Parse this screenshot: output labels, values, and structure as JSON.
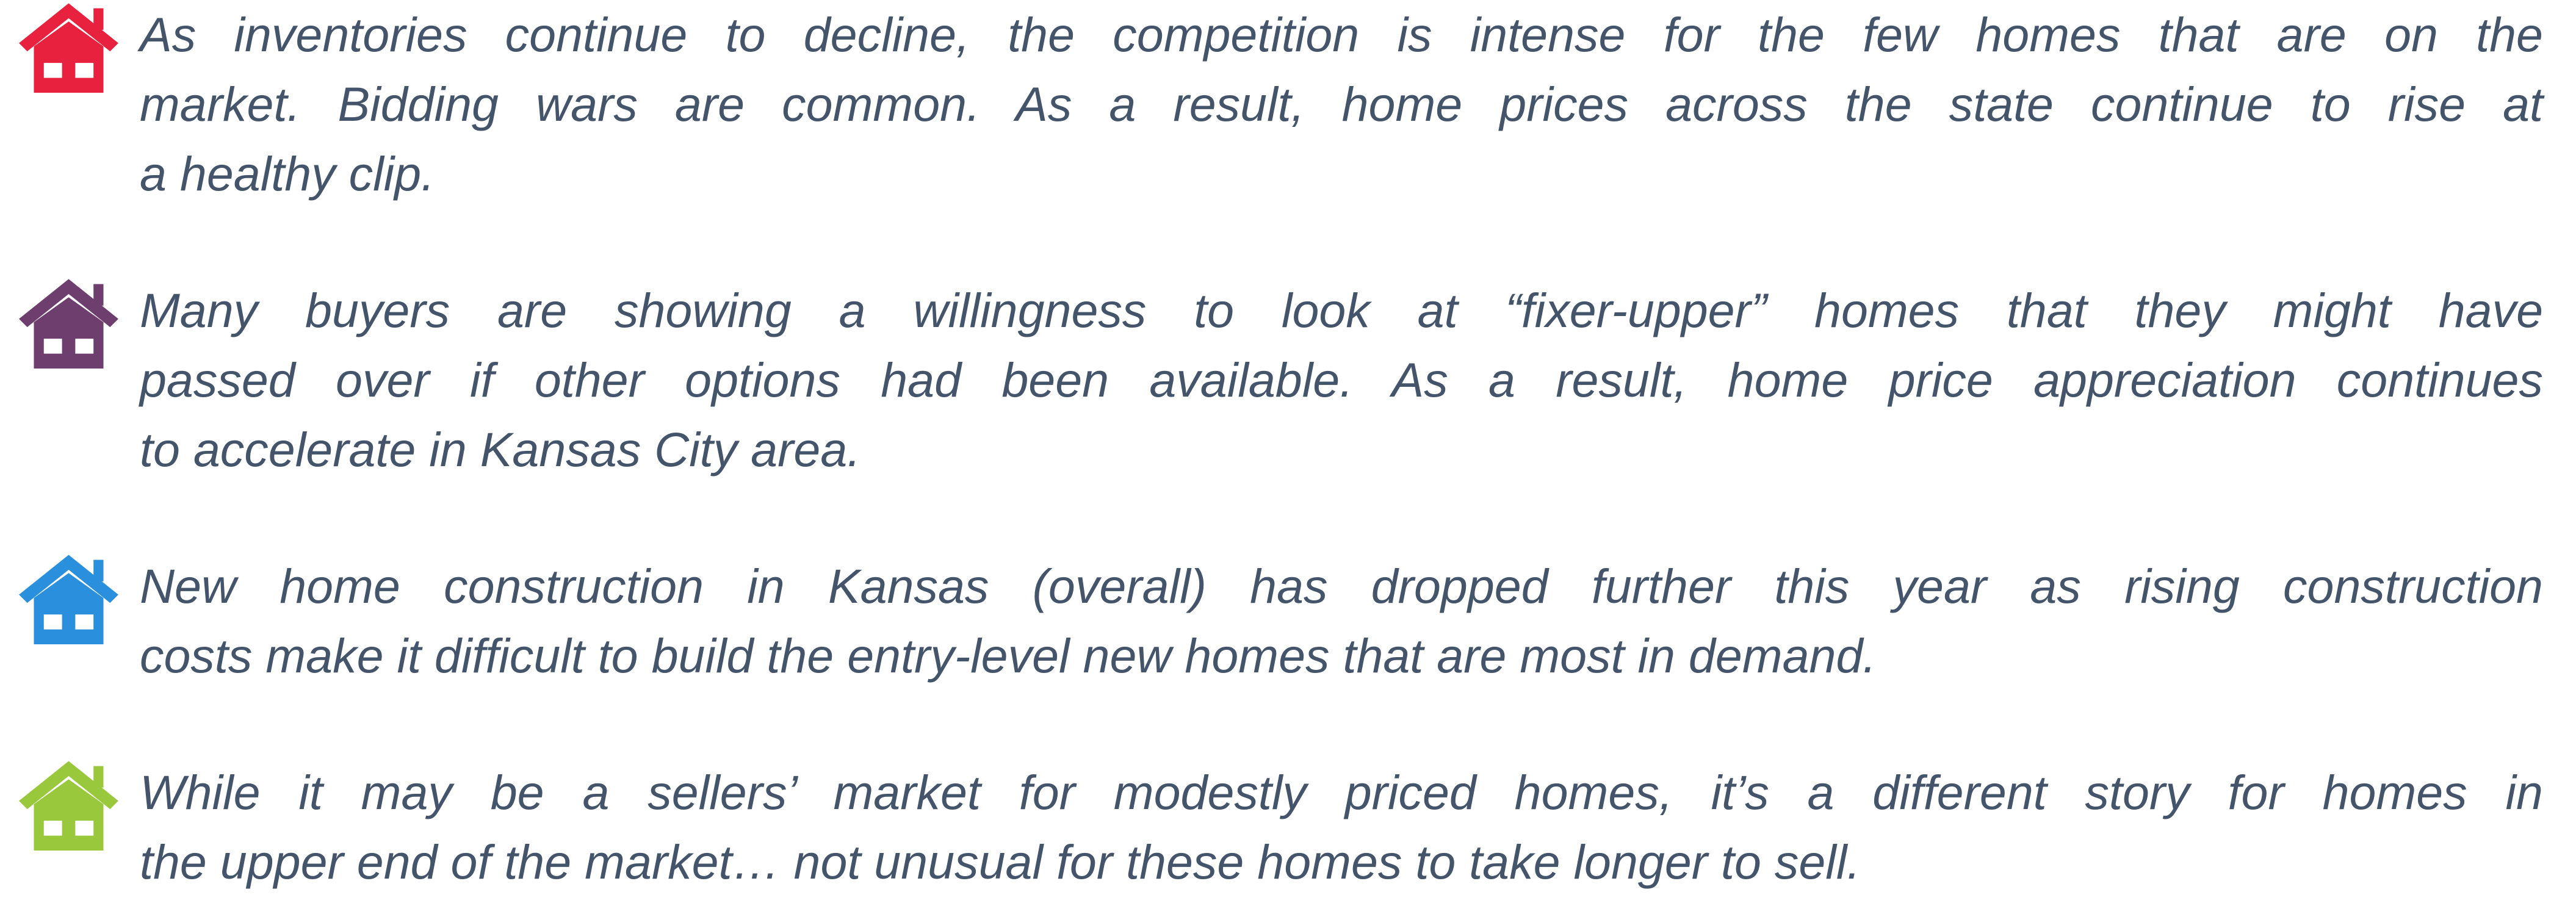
{
  "items": [
    {
      "lines": [
        "As inventories continue to decline, the competition is intense for the few homes that are on the",
        "market.  Bidding wars are common. As a result, home prices across the state continue to rise at",
        "a healthy clip."
      ]
    },
    {
      "lines": [
        "Many buyers are showing a willingness to look at “fixer-upper” homes that they might have",
        "passed over if other options had been available. As a result, home price appreciation continues",
        "to accelerate in Kansas City area."
      ]
    },
    {
      "lines": [
        "New home construction in Kansas (overall) has dropped further this year as rising construction",
        "costs make it difficult to build the entry-level new homes that are most in demand."
      ]
    },
    {
      "lines": [
        "While it may be a sellers’ market for modestly priced homes, it’s a different story for homes in",
        "the upper end of the market… not unusual for these homes to take longer to sell."
      ]
    }
  ]
}
